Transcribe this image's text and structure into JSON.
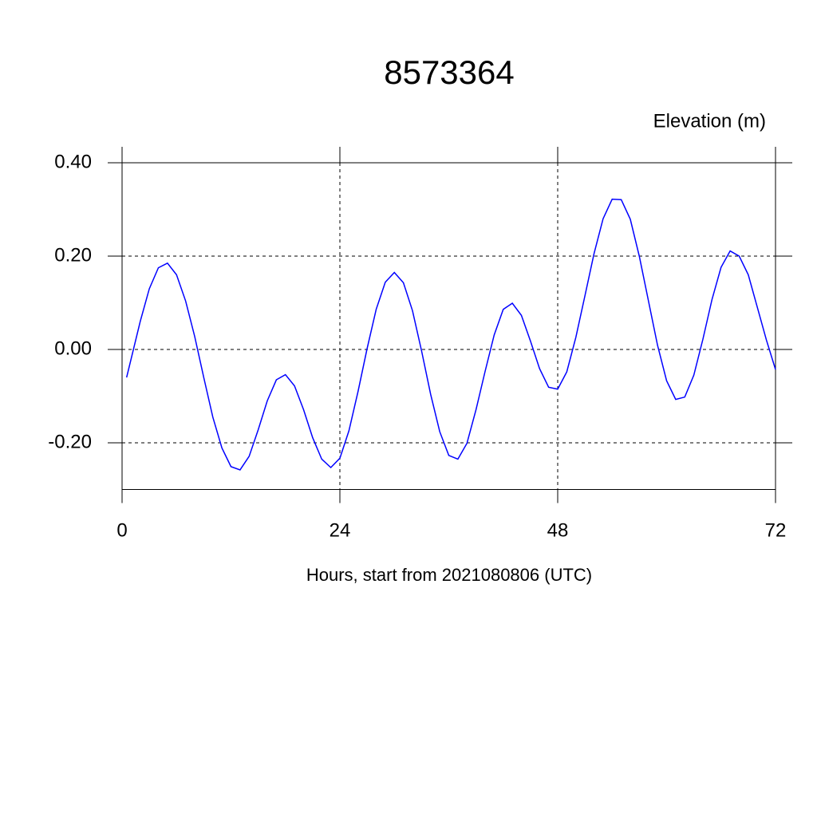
{
  "chart_data": {
    "type": "line",
    "title": "8573364",
    "y_label": "Elevation (m)",
    "x_label": "Hours, start from 2021080806 (UTC)",
    "x": [
      0.5,
      1,
      2,
      3,
      4,
      5,
      6,
      7,
      8,
      9,
      10,
      11,
      12,
      13,
      14,
      15,
      16,
      17,
      18,
      19,
      20,
      21,
      22,
      23,
      24,
      25,
      26,
      27,
      28,
      29,
      30,
      31,
      32,
      33,
      34,
      35,
      36,
      37,
      38,
      39,
      40,
      41,
      42,
      43,
      44,
      45,
      46,
      47,
      48,
      49,
      50,
      51,
      52,
      53,
      54,
      55,
      56,
      57,
      58,
      59,
      60,
      61,
      62,
      63,
      64,
      65,
      66,
      67,
      68,
      69,
      70,
      71,
      72
    ],
    "series": [
      {
        "color": "#0000ff",
        "values": [
          -0.06,
          -0.02,
          0.06,
          0.13,
          0.175,
          0.185,
          0.16,
          0.104,
          0.028,
          -0.06,
          -0.145,
          -0.211,
          -0.251,
          -0.258,
          -0.229,
          -0.172,
          -0.11,
          -0.065,
          -0.054,
          -0.078,
          -0.129,
          -0.189,
          -0.235,
          -0.253,
          -0.233,
          -0.174,
          -0.09,
          0.002,
          0.086,
          0.144,
          0.165,
          0.143,
          0.083,
          -0.003,
          -0.096,
          -0.176,
          -0.227,
          -0.235,
          -0.201,
          -0.129,
          -0.047,
          0.031,
          0.086,
          0.099,
          0.073,
          0.018,
          -0.041,
          -0.081,
          -0.085,
          -0.048,
          0.026,
          0.115,
          0.205,
          0.28,
          0.322,
          0.321,
          0.279,
          0.199,
          0.104,
          0.009,
          -0.067,
          -0.107,
          -0.102,
          -0.055,
          0.022,
          0.107,
          0.176,
          0.211,
          0.2,
          0.16,
          0.09,
          0.02,
          -0.043
        ]
      }
    ],
    "xlim": [
      0,
      72
    ],
    "xticks": [
      0,
      24,
      48,
      72
    ],
    "ylim": [
      -0.3,
      0.4
    ],
    "yticks": [
      {
        "value": -0.2,
        "label": "-0.20"
      },
      {
        "value": 0,
        "label": "0.00"
      },
      {
        "value": 0.2,
        "label": "0.20"
      },
      {
        "value": 0.4,
        "label": "0.40"
      }
    ],
    "grid": true
  }
}
